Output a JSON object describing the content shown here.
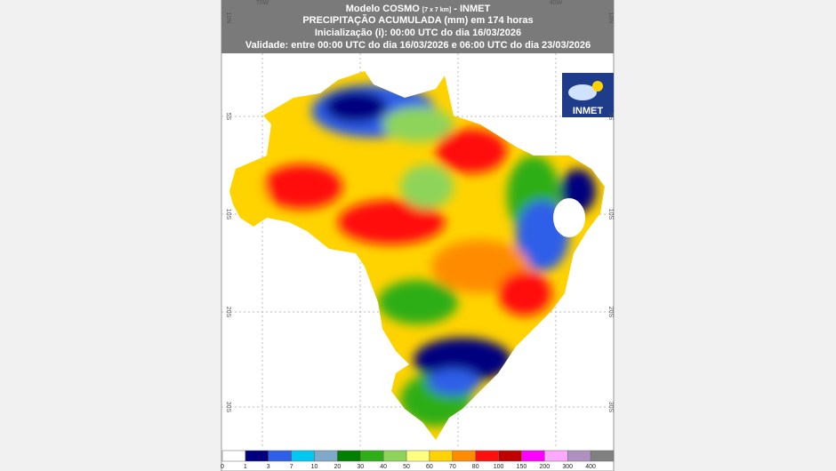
{
  "header": {
    "model": "Modelo COSMO",
    "resolution": "[7 x 7 km]",
    "source": "- INMET",
    "line2": "PRECIPITAÇÃO ACUMULADA (mm) em 174 horas",
    "line3": "Inicialização (i): 00:00 UTC do dia 16/03/2026",
    "line4": "Validade: entre 00:00 UTC do dia 16/03/2026 e 06:00 UTC do dia 23/03/2026"
  },
  "coordinates": {
    "top": [
      "70W",
      "40W"
    ],
    "side": [
      "10N",
      "5S",
      "10S",
      "20S",
      "30S"
    ]
  },
  "logo": "INMET",
  "colorbar": {
    "labels": [
      0,
      1,
      3,
      7,
      10,
      20,
      30,
      40,
      50,
      60,
      70,
      80,
      100,
      150,
      200,
      300,
      400
    ],
    "colors": [
      "#ffffff",
      "#00007f",
      "#2f5fe8",
      "#00c8f0",
      "#7fa9c8",
      "#007f00",
      "#2fae18",
      "#8ed45a",
      "#ffff80",
      "#ffd300",
      "#ff8c00",
      "#ff1010",
      "#c00000",
      "#ff00ff",
      "#ffa8ff",
      "#b090c0",
      "#808080"
    ]
  }
}
